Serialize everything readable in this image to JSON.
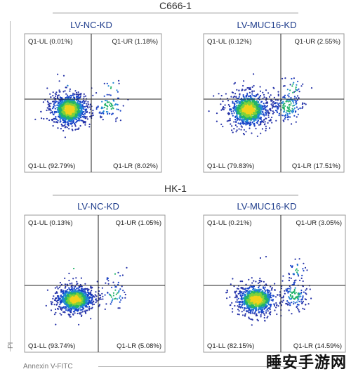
{
  "groups": [
    {
      "title": "C666-1"
    },
    {
      "title": "HK-1"
    }
  ],
  "axes": {
    "x_label": "Annexin V-FITC",
    "y_label": "PI"
  },
  "watermark": "睡安手游网",
  "chart_data": [
    {
      "type": "scatter",
      "group": "C666-1",
      "title": "LV-NC-KD",
      "quadrants": {
        "UL": "Q1-UL (0.01%)",
        "UR": "Q1-UR (1.18%)",
        "LL": "Q1-LL (92.79%)",
        "LR": "Q1-LR (8.02%)"
      },
      "percent": {
        "UL": 0.01,
        "UR": 1.18,
        "LL": 92.79,
        "LR": 8.02
      }
    },
    {
      "type": "scatter",
      "group": "C666-1",
      "title": "LV-MUC16-KD",
      "quadrants": {
        "UL": "Q1-UL (0.12%)",
        "UR": "Q1-UR (2.55%)",
        "LL": "Q1-LL (79.83%)",
        "LR": "Q1-LR (17.51%)"
      },
      "percent": {
        "UL": 0.12,
        "UR": 2.55,
        "LL": 79.83,
        "LR": 17.51
      }
    },
    {
      "type": "scatter",
      "group": "HK-1",
      "title": "LV-NC-KD",
      "quadrants": {
        "UL": "Q1-UL (0.13%)",
        "UR": "Q1-UR (1.05%)",
        "LL": "Q1-LL (93.74%)",
        "LR": "Q1-LR (5.08%)"
      },
      "percent": {
        "UL": 0.13,
        "UR": 1.05,
        "LL": 93.74,
        "LR": 5.08
      }
    },
    {
      "type": "scatter",
      "group": "HK-1",
      "title": "LV-MUC16-KD",
      "quadrants": {
        "UL": "Q1-UL (0.21%)",
        "UR": "Q1-UR (3.05%)",
        "LL": "Q1-LL (82.15%)",
        "LR": "Q1-LR (14.59%)"
      },
      "percent": {
        "UL": 0.21,
        "UR": 3.05,
        "LL": 82.15,
        "LR": 14.59
      }
    }
  ]
}
